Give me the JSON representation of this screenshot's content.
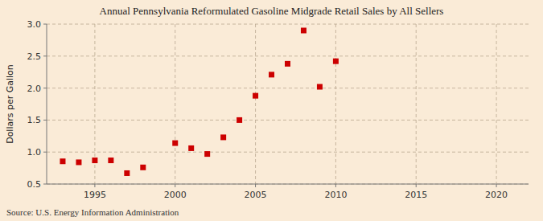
{
  "chart_data": {
    "type": "scatter",
    "title": "Annual Pennsylvania Reformulated Gasoline Midgrade Retail Sales by All Sellers",
    "y_label": "Dollars per Gallon",
    "annotations": [
      "Source: U.S. Energy Information Administration"
    ],
    "color": "#cc0000",
    "marker": "square",
    "x": [
      1993,
      1994,
      1995,
      1996,
      1997,
      1998,
      2000,
      2001,
      2002,
      2003,
      2004,
      2005,
      2006,
      2007,
      2008,
      2009,
      2010
    ],
    "values": [
      0.855,
      0.84,
      0.87,
      0.87,
      0.67,
      0.76,
      1.14,
      1.06,
      0.97,
      1.23,
      1.5,
      1.88,
      2.21,
      2.38,
      2.9,
      2.02,
      2.42
    ],
    "xlim": [
      1992,
      2022
    ],
    "ylim": [
      0.5,
      3.0
    ],
    "xticks": [
      1995,
      2000,
      2005,
      2010,
      2015,
      2020
    ],
    "yticks": [
      0.5,
      {
        "value": 1.0,
        "label": "1.0"
      },
      1.5,
      {
        "value": 2.0,
        "label": "2.0"
      },
      2.5,
      {
        "value": 3.0,
        "label": "3.0"
      }
    ],
    "grid": true
  }
}
